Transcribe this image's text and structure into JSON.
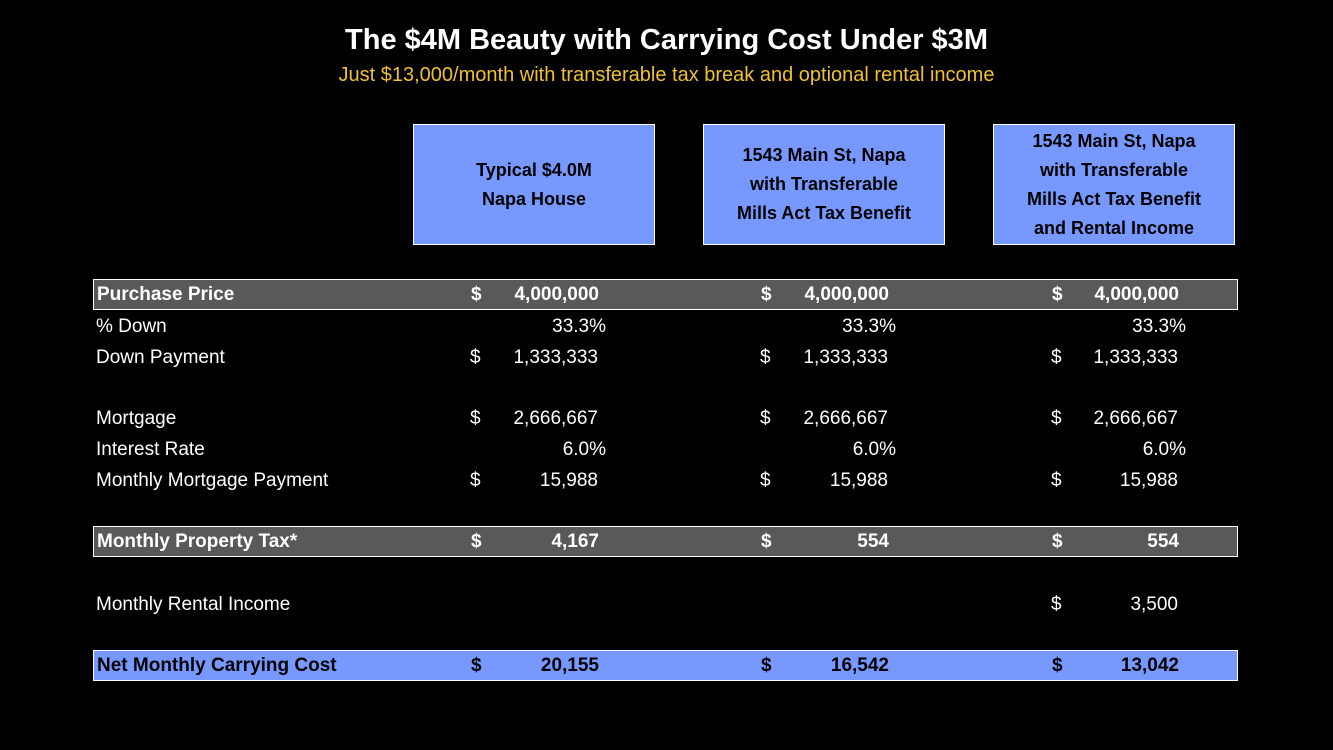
{
  "header": {
    "title": "The $4M Beauty with Carrying Cost Under $3M",
    "subtitle": "Just $13,000/month with transferable tax break and optional rental income"
  },
  "columns": [
    "Typical $4.0M\nNapa House",
    "1543 Main St, Napa\nwith Transferable\nMills Act Tax Benefit",
    "1543 Main St, Napa\nwith Transferable\nMills Act Tax Benefit\nand Rental Income"
  ],
  "rows": {
    "purchase_price": {
      "label": "Purchase Price",
      "cur": [
        "$",
        "$",
        "$"
      ],
      "values": [
        "4,000,000",
        "4,000,000",
        "4,000,000"
      ]
    },
    "pct_down": {
      "label": "% Down",
      "cur": [
        "",
        "",
        ""
      ],
      "values": [
        "33.3%",
        "33.3%",
        "33.3%"
      ]
    },
    "down_payment": {
      "label": "Down Payment",
      "cur": [
        "$",
        "$",
        "$"
      ],
      "values": [
        "1,333,333",
        "1,333,333",
        "1,333,333"
      ]
    },
    "mortgage": {
      "label": "Mortgage",
      "cur": [
        "$",
        "$",
        "$"
      ],
      "values": [
        "2,666,667",
        "2,666,667",
        "2,666,667"
      ]
    },
    "interest_rate": {
      "label": "Interest Rate",
      "cur": [
        "",
        "",
        ""
      ],
      "values": [
        "6.0%",
        "6.0%",
        "6.0%"
      ]
    },
    "monthly_mortgage": {
      "label": "Monthly Mortgage Payment",
      "cur": [
        "$",
        "$",
        "$"
      ],
      "values": [
        "15,988",
        "15,988",
        "15,988"
      ]
    },
    "property_tax": {
      "label": "Monthly Property Tax*",
      "cur": [
        "$",
        "$",
        "$"
      ],
      "values": [
        "4,167",
        "554",
        "554"
      ]
    },
    "rental_income": {
      "label": "Monthly Rental Income",
      "cur": [
        "",
        "",
        "$"
      ],
      "values": [
        "",
        "",
        "3,500"
      ]
    },
    "net_cost": {
      "label": "Net Monthly Carrying Cost",
      "cur": [
        "$",
        "$",
        "$"
      ],
      "values": [
        "20,155",
        "16,542",
        "13,042"
      ]
    }
  }
}
